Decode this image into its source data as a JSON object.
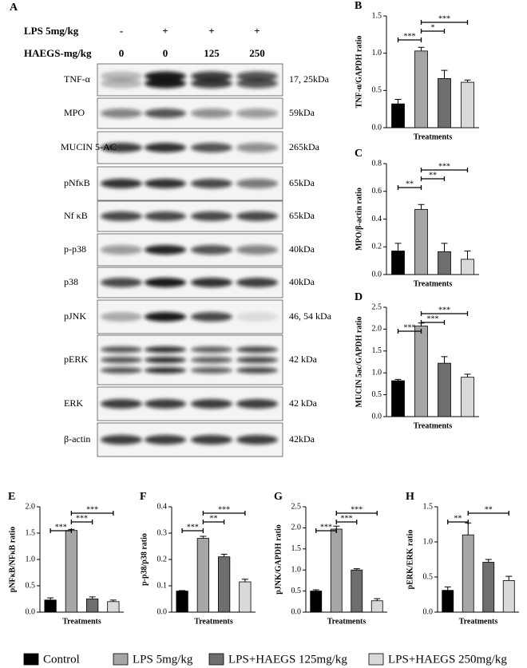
{
  "blot": {
    "panel_label": "A",
    "conditions": [
      {
        "label": "LPS 5mg/kg",
        "values": [
          "-",
          "+",
          "+",
          "+"
        ]
      },
      {
        "label": "HAEGS-mg/kg",
        "values": [
          "0",
          "0",
          "125",
          "250"
        ]
      }
    ],
    "rows": [
      {
        "protein": "TNF-α",
        "size": "17, 25kDa"
      },
      {
        "protein": "MPO",
        "size": "59kDa"
      },
      {
        "protein": "MUCIN 5-AC",
        "size": "265kDa"
      },
      {
        "protein": "pNfκB",
        "size": "65kDa"
      },
      {
        "protein": "Nf κB",
        "size": "65kDa"
      },
      {
        "protein": "p-p38",
        "size": "40kDa"
      },
      {
        "protein": "p38",
        "size": "40kDa"
      },
      {
        "protein": "pJNK",
        "size": "46, 54 kDa"
      },
      {
        "protein": "pERK",
        "size": "42 kDa"
      },
      {
        "protein": "ERK",
        "size": "42 kDa"
      },
      {
        "protein": "β-actin",
        "size": "42kDa"
      }
    ]
  },
  "groups": [
    {
      "name": "Control",
      "color": "#000000"
    },
    {
      "name": "LPS 5mg/kg",
      "color": "#a6a6a6"
    },
    {
      "name": "LPS+HAEGS 125mg/kg",
      "color": "#6e6e6e"
    },
    {
      "name": "LPS+HAEGS 250mg/kg",
      "color": "#d9d9d9"
    }
  ],
  "chart_data": [
    {
      "type": "bar",
      "panel_label": "B",
      "y_label": "TNF-α/GAPDH ratio",
      "x_label": "Treatments",
      "values": [
        0.32,
        1.03,
        0.66,
        0.61
      ],
      "errors": [
        0.06,
        0.05,
        0.11,
        0.03
      ],
      "ylim": [
        0,
        1.5
      ],
      "yticks": [
        {
          "value": 0,
          "label": "0.0"
        },
        {
          "value": 0.5,
          "label": "0.5"
        },
        {
          "value": 1,
          "label": "1.0"
        },
        {
          "value": 1.5,
          "label": "1.5"
        }
      ],
      "comparisons": [
        {
          "groups": [
            0,
            1
          ],
          "label": "***"
        },
        {
          "groups": [
            1,
            2
          ],
          "label": "*"
        },
        {
          "groups": [
            1,
            3
          ],
          "label": "***"
        }
      ]
    },
    {
      "type": "bar",
      "panel_label": "C",
      "y_label": "MPO/β-actin ratio",
      "x_label": "Treatments",
      "values": [
        0.17,
        0.47,
        0.165,
        0.11
      ],
      "errors": [
        0.055,
        0.035,
        0.06,
        0.06
      ],
      "ylim": [
        0,
        0.8
      ],
      "yticks": [
        {
          "value": 0,
          "label": "0.0"
        },
        {
          "value": 0.2,
          "label": "0.2"
        },
        {
          "value": 0.4,
          "label": "0.4"
        },
        {
          "value": 0.6,
          "label": "0.6"
        },
        {
          "value": 0.8,
          "label": "0.8"
        }
      ],
      "comparisons": [
        {
          "groups": [
            0,
            1
          ],
          "label": "**"
        },
        {
          "groups": [
            1,
            2
          ],
          "label": "**"
        },
        {
          "groups": [
            1,
            3
          ],
          "label": "***"
        }
      ]
    },
    {
      "type": "bar",
      "panel_label": "D",
      "y_label": "MUCIN 5ac/GAPDH ratio",
      "x_label": "Treatments",
      "values": [
        0.82,
        2.07,
        1.22,
        0.9
      ],
      "errors": [
        0.03,
        0.07,
        0.15,
        0.07
      ],
      "ylim": [
        0,
        2.5
      ],
      "yticks": [
        {
          "value": 0,
          "label": "0.0"
        },
        {
          "value": 0.5,
          "label": "0.5"
        },
        {
          "value": 1,
          "label": "1.0"
        },
        {
          "value": 1.5,
          "label": "1.5"
        },
        {
          "value": 2,
          "label": "2.0"
        },
        {
          "value": 2.5,
          "label": "2.5"
        }
      ],
      "comparisons": [
        {
          "groups": [
            0,
            1
          ],
          "label": "***"
        },
        {
          "groups": [
            1,
            2
          ],
          "label": "***"
        },
        {
          "groups": [
            1,
            3
          ],
          "label": "***"
        }
      ]
    },
    {
      "type": "bar",
      "panel_label": "E",
      "y_label": "pNFκB/NFκB ratio",
      "x_label": "Treatments",
      "values": [
        0.23,
        1.55,
        0.25,
        0.2
      ],
      "errors": [
        0.04,
        0.02,
        0.04,
        0.03
      ],
      "ylim": [
        0,
        2
      ],
      "yticks": [
        {
          "value": 0,
          "label": "0.0"
        },
        {
          "value": 0.5,
          "label": "0.5"
        },
        {
          "value": 1,
          "label": "1.0"
        },
        {
          "value": 1.5,
          "label": "1.5"
        },
        {
          "value": 2,
          "label": "2.0"
        }
      ],
      "comparisons": [
        {
          "groups": [
            0,
            1
          ],
          "label": "***"
        },
        {
          "groups": [
            1,
            2
          ],
          "label": "***"
        },
        {
          "groups": [
            1,
            3
          ],
          "label": "***"
        }
      ]
    },
    {
      "type": "bar",
      "panel_label": "F",
      "y_label": "p-p38/p38 ratio",
      "x_label": "Treatments",
      "values": [
        0.08,
        0.28,
        0.21,
        0.115
      ],
      "errors": [
        0.002,
        0.008,
        0.01,
        0.01
      ],
      "ylim": [
        0,
        0.4
      ],
      "yticks": [
        {
          "value": 0,
          "label": "0.0"
        },
        {
          "value": 0.1,
          "label": "0.1"
        },
        {
          "value": 0.2,
          "label": "0.2"
        },
        {
          "value": 0.3,
          "label": "0.3"
        },
        {
          "value": 0.4,
          "label": "0.4"
        }
      ],
      "comparisons": [
        {
          "groups": [
            0,
            1
          ],
          "label": "***"
        },
        {
          "groups": [
            1,
            2
          ],
          "label": "**"
        },
        {
          "groups": [
            1,
            3
          ],
          "label": "***"
        }
      ]
    },
    {
      "type": "bar",
      "panel_label": "G",
      "y_label": "pJNK/GAPDH ratio",
      "x_label": "Treatments",
      "values": [
        0.5,
        1.97,
        1.0,
        0.27
      ],
      "errors": [
        0.03,
        0.07,
        0.03,
        0.05
      ],
      "ylim": [
        0,
        2.5
      ],
      "yticks": [
        {
          "value": 0,
          "label": "0.0"
        },
        {
          "value": 0.5,
          "label": "0.5"
        },
        {
          "value": 1,
          "label": "1.0"
        },
        {
          "value": 1.5,
          "label": "1.5"
        },
        {
          "value": 2,
          "label": "2.0"
        },
        {
          "value": 2.5,
          "label": "2.5"
        }
      ],
      "comparisons": [
        {
          "groups": [
            0,
            1
          ],
          "label": "***"
        },
        {
          "groups": [
            1,
            2
          ],
          "label": "***"
        },
        {
          "groups": [
            1,
            3
          ],
          "label": "***"
        }
      ]
    },
    {
      "type": "bar",
      "panel_label": "H",
      "y_label": "pERK/ERK ratio",
      "x_label": "Treatments",
      "values": [
        0.31,
        1.1,
        0.71,
        0.45
      ],
      "errors": [
        0.05,
        0.17,
        0.04,
        0.06
      ],
      "ylim": [
        0,
        1.5
      ],
      "yticks": [
        {
          "value": 0,
          "label": "0.0"
        },
        {
          "value": 0.5,
          "label": "0.5"
        },
        {
          "value": 1,
          "label": "1.0"
        },
        {
          "value": 1.5,
          "label": "1.5"
        }
      ],
      "comparisons": [
        {
          "groups": [
            0,
            1
          ],
          "label": "**"
        },
        {
          "groups": [
            1,
            3
          ],
          "label": "**"
        }
      ]
    }
  ]
}
